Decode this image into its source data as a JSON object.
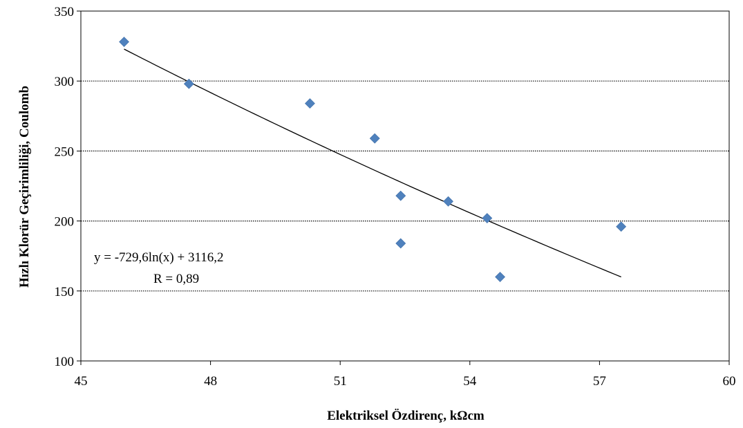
{
  "chart_data": {
    "type": "scatter",
    "xlabel": "Elektriksel Özdirenç, kΩcm",
    "ylabel": "Hızlı Klorür Geçirimliliği, Coulomb",
    "xlim": [
      45,
      60
    ],
    "ylim": [
      100,
      350
    ],
    "xticks": [
      45,
      48,
      51,
      54,
      57,
      60
    ],
    "yticks": [
      100,
      150,
      200,
      250,
      300,
      350
    ],
    "grid": "horizontal-dotted",
    "series": [
      {
        "marker": "diamond",
        "color": "#4f81bd",
        "x": [
          46.0,
          47.5,
          50.3,
          51.8,
          52.4,
          52.4,
          53.5,
          54.4,
          54.7,
          57.5
        ],
        "y": [
          328,
          298,
          284,
          259,
          218,
          184,
          214,
          202,
          160,
          196
        ]
      }
    ],
    "trendline": {
      "type": "logarithmic",
      "a": -729.6,
      "b": 3116.2,
      "x_range": [
        46.0,
        57.5
      ],
      "color": "#000000"
    },
    "annotations": {
      "equation": "y = -729,6ln(x) + 3116,2",
      "r_value": "R = 0,89"
    }
  }
}
